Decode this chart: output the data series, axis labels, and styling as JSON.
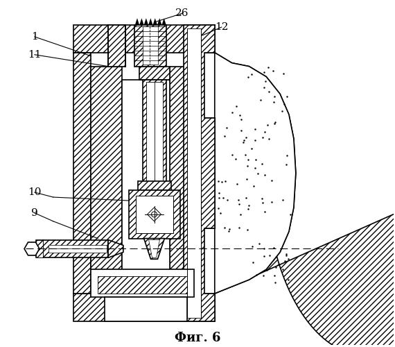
{
  "title": "Фиг. 6",
  "background_color": "#ffffff",
  "line_color": "#000000",
  "labels": [
    "1",
    "11",
    "26",
    "12",
    "10",
    "9"
  ]
}
